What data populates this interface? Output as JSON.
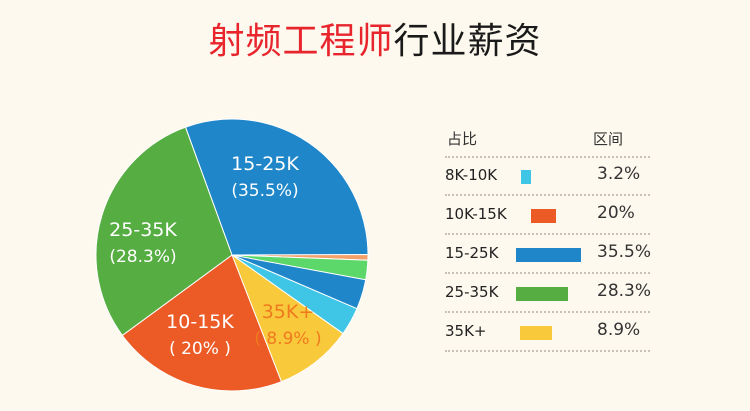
{
  "title": {
    "highlight": "射频工程师",
    "rest": "行业薪资"
  },
  "colors": {
    "8K-10K": "#3fc6e6",
    "10K-15K": "#ec5b26",
    "15-25K": "#1f86c9",
    "25-35K": "#56ae43",
    "35K+": "#f9c93c",
    "extra1": "#5cd86a",
    "extra2": "#f4a06a"
  },
  "legend": {
    "header_left": "占比",
    "header_right": "区间",
    "rows": [
      {
        "label": "8K-10K",
        "pct": "3.2%",
        "color": "#3fc6e6"
      },
      {
        "label": "10K-15K",
        "pct": "20%",
        "color": "#ec5b26"
      },
      {
        "label": "15-25K",
        "pct": "35.5%",
        "color": "#1f86c9"
      },
      {
        "label": "25-35K",
        "pct": "28.3%",
        "color": "#56ae43"
      },
      {
        "label": "35K+",
        "pct": "8.9%",
        "color": "#f9c93c"
      }
    ]
  },
  "chart_data": {
    "type": "pie",
    "title": "射频工程师行业薪资",
    "categories": [
      "15-25K",
      "8K-10K",
      "35K+",
      "10-15K",
      "25-35K"
    ],
    "values": [
      35.5,
      3.2,
      8.9,
      20,
      28.3
    ],
    "slice_labels": [
      {
        "name": "15-25K",
        "pct": "(35.5%)"
      },
      {
        "name": "",
        "pct": ""
      },
      {
        "name": "35K+",
        "pct": "( 8.9% )"
      },
      {
        "name": "10-15K",
        "pct": "( 20% )"
      },
      {
        "name": "25-35K",
        "pct": "(28.3%)"
      }
    ],
    "legend_position": "right"
  }
}
